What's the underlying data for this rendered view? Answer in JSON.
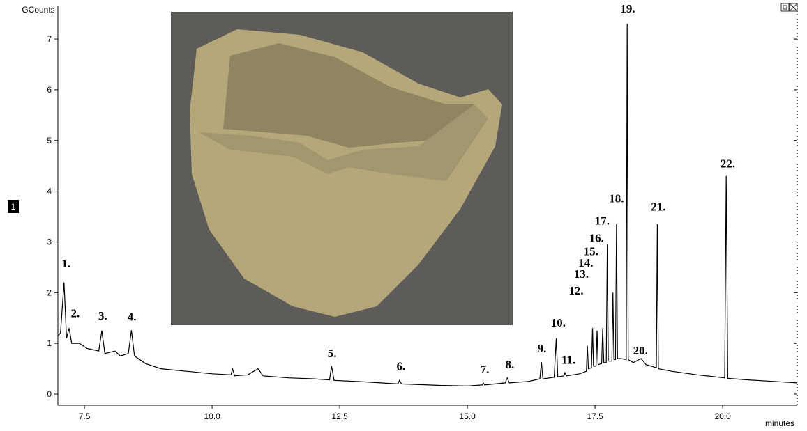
{
  "chart_data": {
    "type": "line",
    "y_label": "GCounts",
    "x_label": "minutes",
    "trace_label": "1",
    "xlim": [
      6.98,
      21.46
    ],
    "ylim": [
      -0.22,
      7.66
    ],
    "xticks": [
      7.5,
      {
        "value": 10,
        "label": "10.0"
      },
      12.5,
      {
        "value": 15,
        "label": "15.0"
      },
      17.5,
      {
        "value": 20,
        "label": "20.0"
      }
    ],
    "yticks": [
      0,
      1,
      2,
      3,
      4,
      5,
      6,
      7
    ],
    "series": [
      {
        "color": "#000000",
        "x": [
          6.98,
          7.03,
          7.1,
          7.15,
          7.2,
          7.25,
          7.4,
          7.55,
          7.78,
          7.84,
          7.9,
          8.1,
          8.2,
          8.36,
          8.42,
          8.48,
          8.7,
          9.0,
          9.5,
          10.0,
          10.37,
          10.4,
          10.44,
          10.7,
          10.9,
          11.0,
          11.5,
          12.0,
          12.3,
          12.34,
          12.39,
          13.0,
          13.64,
          13.67,
          13.71,
          14.5,
          15.0,
          15.29,
          15.31,
          15.34,
          15.74,
          15.78,
          15.82,
          16.2,
          16.42,
          16.45,
          16.48,
          16.7,
          16.74,
          16.77,
          16.89,
          16.91,
          16.94,
          17.2,
          17.33,
          17.35,
          17.37,
          17.43,
          17.45,
          17.47,
          17.52,
          17.54,
          17.56,
          17.63,
          17.65,
          17.67,
          17.72,
          17.74,
          17.76,
          17.83,
          17.85,
          17.87,
          17.9,
          17.92,
          17.94,
          18.0,
          18.11,
          18.13,
          18.15,
          18.25,
          18.4,
          18.5,
          18.7,
          18.72,
          18.74,
          19.0,
          19.5,
          20.04,
          20.07,
          20.1,
          20.5,
          21.0,
          21.46
        ],
        "values": [
          1.15,
          1.2,
          2.2,
          1.1,
          1.3,
          1.0,
          1.0,
          0.9,
          0.85,
          1.25,
          0.8,
          0.85,
          0.75,
          0.8,
          1.26,
          0.75,
          0.6,
          0.5,
          0.45,
          0.4,
          0.38,
          0.5,
          0.36,
          0.38,
          0.5,
          0.36,
          0.32,
          0.3,
          0.28,
          0.55,
          0.27,
          0.24,
          0.2,
          0.27,
          0.2,
          0.17,
          0.16,
          0.18,
          0.22,
          0.18,
          0.22,
          0.32,
          0.22,
          0.25,
          0.3,
          0.63,
          0.3,
          0.33,
          1.1,
          0.34,
          0.36,
          0.42,
          0.36,
          0.4,
          0.45,
          0.95,
          0.5,
          0.52,
          1.3,
          0.55,
          0.55,
          1.25,
          0.58,
          0.6,
          1.3,
          0.62,
          0.62,
          2.95,
          0.65,
          0.65,
          2.0,
          0.68,
          0.68,
          3.35,
          0.7,
          0.7,
          0.68,
          7.3,
          0.68,
          0.62,
          0.7,
          0.58,
          0.52,
          3.35,
          0.5,
          0.45,
          0.38,
          0.32,
          4.3,
          0.31,
          0.28,
          0.25,
          0.22
        ]
      }
    ],
    "annotations": [
      {
        "text": "1.",
        "x": 7.14,
        "y": 2.5
      },
      {
        "text": "2.",
        "x": 7.32,
        "y": 1.52
      },
      {
        "text": "3.",
        "x": 7.86,
        "y": 1.47
      },
      {
        "text": "4.",
        "x": 8.43,
        "y": 1.45
      },
      {
        "text": "5.",
        "x": 12.35,
        "y": 0.73
      },
      {
        "text": "6.",
        "x": 13.7,
        "y": 0.47
      },
      {
        "text": "7.",
        "x": 15.34,
        "y": 0.41
      },
      {
        "text": "8.",
        "x": 15.83,
        "y": 0.51
      },
      {
        "text": "9.",
        "x": 16.46,
        "y": 0.82
      },
      {
        "text": "10.",
        "x": 16.78,
        "y": 1.33
      },
      {
        "text": "11.",
        "x": 16.98,
        "y": 0.6
      },
      {
        "text": "12.",
        "x": 17.13,
        "y": 1.96
      },
      {
        "text": "13.",
        "x": 17.23,
        "y": 2.29
      },
      {
        "text": "14.",
        "x": 17.32,
        "y": 2.51
      },
      {
        "text": "15.",
        "x": 17.42,
        "y": 2.74
      },
      {
        "text": "16.",
        "x": 17.53,
        "y": 3.0
      },
      {
        "text": "17.",
        "x": 17.64,
        "y": 3.34
      },
      {
        "text": "18.",
        "x": 17.92,
        "y": 3.78
      },
      {
        "text": "19.",
        "x": 18.14,
        "y": 7.52
      },
      {
        "text": "20.",
        "x": 18.39,
        "y": 0.78
      },
      {
        "text": "21.",
        "x": 18.74,
        "y": 3.62
      },
      {
        "text": "22.",
        "x": 20.1,
        "y": 4.47
      }
    ]
  }
}
